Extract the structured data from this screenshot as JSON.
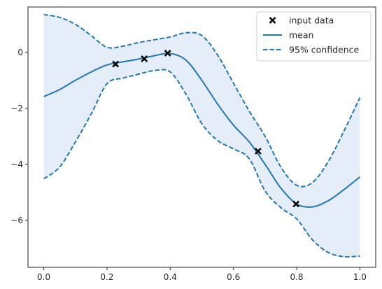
{
  "chart_data": {
    "type": "line",
    "title": "",
    "xlabel": "",
    "ylabel": "",
    "xlim": [
      -0.05,
      1.05
    ],
    "ylim": [
      -7.68,
      1.62
    ],
    "xticks": [
      0.0,
      0.2,
      0.4,
      0.6,
      0.8,
      1.0
    ],
    "xtick_labels": [
      "0.0",
      "0.2",
      "0.4",
      "0.6",
      "0.8",
      "1.0"
    ],
    "yticks": [
      0,
      -2,
      -4,
      -6
    ],
    "ytick_labels": [
      "0",
      "−2",
      "−4",
      "−6"
    ],
    "grid": false,
    "legend_position": "top-right",
    "colors": {
      "mean": "#1f77b4",
      "band": "#dce8f5",
      "points": "#000000",
      "axes": "#262626"
    },
    "legend": [
      {
        "label": "input data",
        "style": "marker-x"
      },
      {
        "label": "mean",
        "style": "solid"
      },
      {
        "label": "95% confidence",
        "style": "dashed"
      }
    ],
    "series": [
      {
        "name": "input data",
        "kind": "scatter",
        "x": [
          0.227,
          0.318,
          0.392,
          0.678,
          0.798
        ],
        "y": [
          -0.42,
          -0.23,
          -0.03,
          -3.53,
          -5.42
        ]
      },
      {
        "name": "mean",
        "kind": "line",
        "x": [
          0.0,
          0.05,
          0.1,
          0.15,
          0.2,
          0.25,
          0.3,
          0.35,
          0.4,
          0.45,
          0.5,
          0.55,
          0.6,
          0.65,
          0.7,
          0.75,
          0.8,
          0.85,
          0.9,
          0.95,
          1.0
        ],
        "y": [
          -1.58,
          -1.33,
          -1.0,
          -0.7,
          -0.45,
          -0.34,
          -0.24,
          -0.12,
          -0.04,
          -0.28,
          -1.0,
          -1.85,
          -2.6,
          -3.2,
          -4.0,
          -4.85,
          -5.42,
          -5.52,
          -5.3,
          -4.9,
          -4.45
        ]
      },
      {
        "name": "95% confidence",
        "kind": "line-dashed",
        "x": [
          0.0,
          0.05,
          0.1,
          0.15,
          0.2,
          0.25,
          0.3,
          0.35,
          0.4,
          0.45,
          0.5,
          0.55,
          0.6,
          0.65,
          0.7,
          0.75,
          0.8,
          0.85,
          0.9,
          0.95,
          1.0
        ],
        "y": [
          1.35,
          1.25,
          1.0,
          0.6,
          0.18,
          0.22,
          0.35,
          0.45,
          0.55,
          0.7,
          0.6,
          -0.1,
          -1.1,
          -2.1,
          -3.0,
          -4.1,
          -4.75,
          -4.65,
          -3.9,
          -2.8,
          -1.62
        ]
      },
      {
        "name": "95% confidence",
        "kind": "line-dashed",
        "x": [
          0.0,
          0.05,
          0.1,
          0.15,
          0.2,
          0.25,
          0.3,
          0.35,
          0.4,
          0.45,
          0.5,
          0.55,
          0.6,
          0.65,
          0.7,
          0.75,
          0.8,
          0.85,
          0.9,
          0.95,
          1.0
        ],
        "y": [
          -4.52,
          -4.1,
          -3.2,
          -2.2,
          -1.12,
          -0.92,
          -0.78,
          -0.65,
          -0.7,
          -1.5,
          -2.55,
          -3.15,
          -3.45,
          -3.8,
          -4.95,
          -5.55,
          -5.95,
          -6.7,
          -7.15,
          -7.3,
          -7.28
        ]
      }
    ]
  }
}
